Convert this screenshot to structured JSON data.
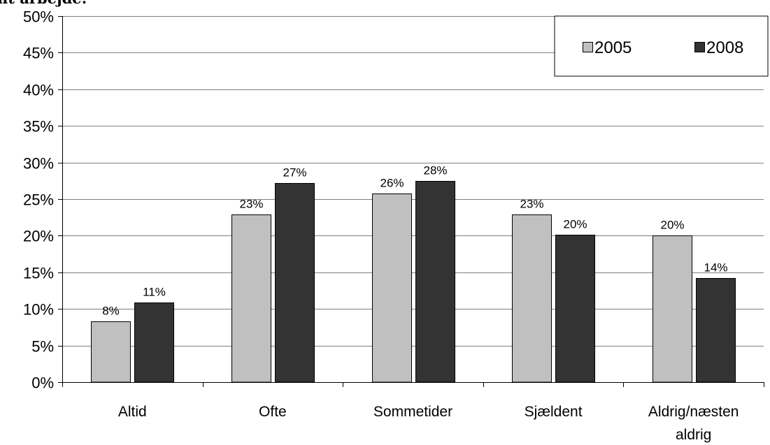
{
  "chart_data": {
    "type": "bar",
    "title": "nt arbejde:",
    "categories": [
      [
        "Altid"
      ],
      [
        "Ofte"
      ],
      [
        "Sommetider"
      ],
      [
        "Sjældent"
      ],
      [
        "Aldrig/næsten",
        "aldrig"
      ]
    ],
    "series": [
      {
        "name": "2005",
        "color": "#c0c0c0",
        "values": [
          8.3,
          22.9,
          25.8,
          22.9,
          20.0
        ],
        "labels": [
          "8%",
          "23%",
          "26%",
          "23%",
          "20%"
        ]
      },
      {
        "name": "2008",
        "color": "#333333",
        "values": [
          10.9,
          27.2,
          27.5,
          20.1,
          14.2
        ],
        "labels": [
          "11%",
          "27%",
          "28%",
          "20%",
          "14%"
        ]
      }
    ],
    "ylim": [
      0,
      50
    ],
    "y_ticks": [
      0,
      5,
      10,
      15,
      20,
      25,
      30,
      35,
      40,
      45,
      50
    ],
    "y_tick_labels": [
      "0%",
      "5%",
      "10%",
      "15%",
      "20%",
      "25%",
      "30%",
      "35%",
      "40%",
      "45%",
      "50%"
    ],
    "grid": true,
    "legend": "top-right",
    "xlabel": "",
    "ylabel": ""
  }
}
